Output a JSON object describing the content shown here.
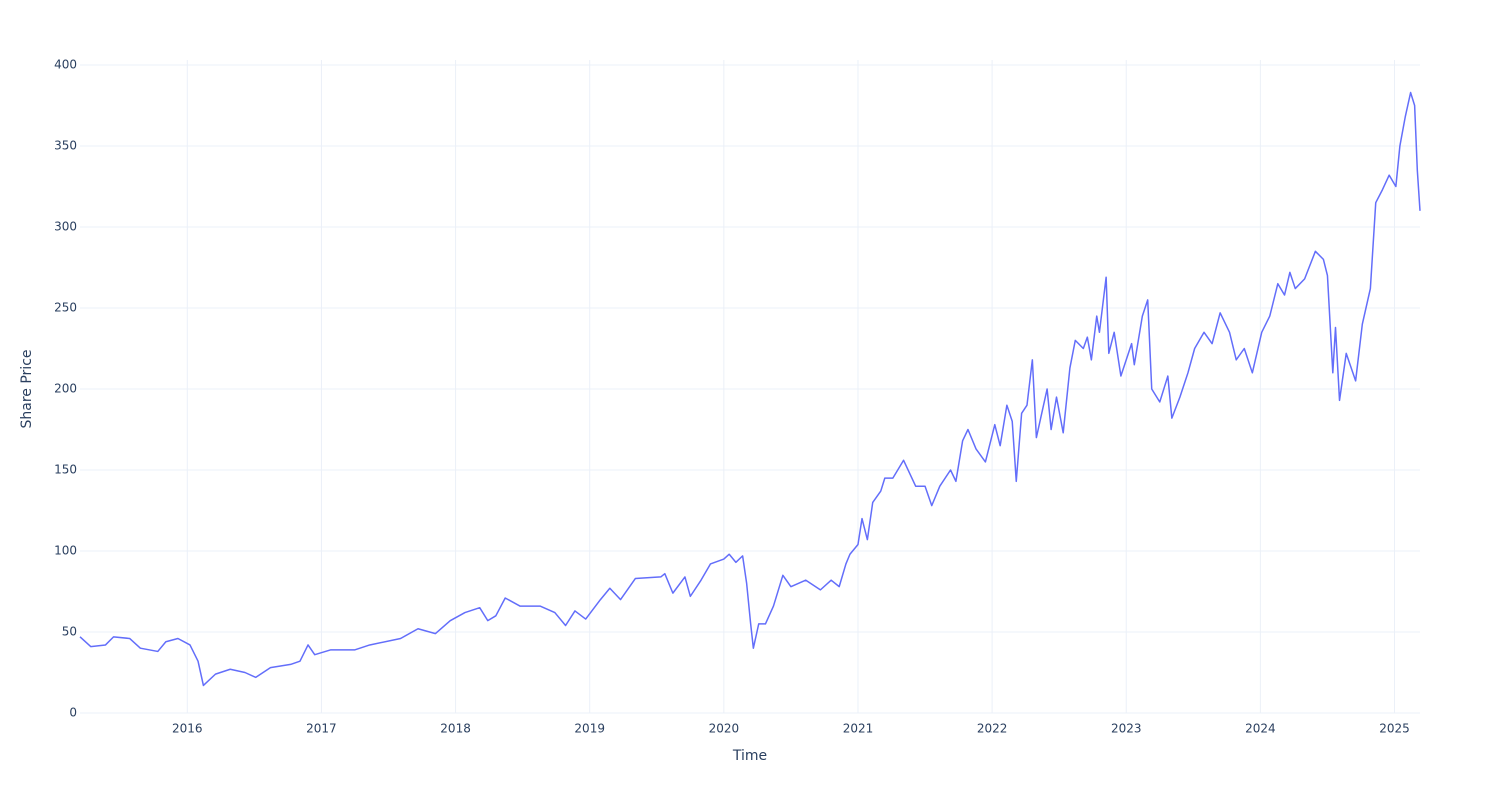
{
  "chart_data": {
    "type": "line",
    "x_label": "Time",
    "y_label": "Share Price",
    "color": "#636efa",
    "grid": true,
    "xlim": [
      2015.2,
      2025.19
    ],
    "ylim": [
      0,
      400
    ],
    "xticks": [
      2016,
      2017,
      2018,
      2019,
      2020,
      2021,
      2022,
      2023,
      2024,
      2025
    ],
    "yticks": [
      0,
      50,
      100,
      150,
      200,
      250,
      300,
      350,
      400
    ],
    "x": [
      2015.2,
      2015.28,
      2015.39,
      2015.45,
      2015.57,
      2015.65,
      2015.78,
      2015.84,
      2015.93,
      2016.02,
      2016.08,
      2016.12,
      2016.21,
      2016.32,
      2016.43,
      2016.51,
      2016.62,
      2016.77,
      2016.84,
      2016.9,
      2016.95,
      2017.07,
      2017.25,
      2017.36,
      2017.59,
      2017.72,
      2017.85,
      2017.96,
      2018.07,
      2018.18,
      2018.24,
      2018.3,
      2018.37,
      2018.48,
      2018.63,
      2018.74,
      2018.82,
      2018.89,
      2018.97,
      2019.08,
      2019.15,
      2019.23,
      2019.34,
      2019.53,
      2019.56,
      2019.62,
      2019.71,
      2019.75,
      2019.83,
      2019.9,
      2020.0,
      2020.04,
      2020.09,
      2020.14,
      2020.17,
      2020.2,
      2020.22,
      2020.26,
      2020.31,
      2020.37,
      2020.44,
      2020.5,
      2020.61,
      2020.72,
      2020.8,
      2020.86,
      2020.91,
      2020.94,
      2021.0,
      2021.03,
      2021.07,
      2021.11,
      2021.17,
      2021.2,
      2021.26,
      2021.34,
      2021.43,
      2021.5,
      2021.55,
      2021.61,
      2021.69,
      2021.73,
      2021.78,
      2021.82,
      2021.88,
      2021.95,
      2022.02,
      2022.06,
      2022.11,
      2022.15,
      2022.18,
      2022.22,
      2022.26,
      2022.3,
      2022.33,
      2022.37,
      2022.41,
      2022.44,
      2022.48,
      2022.53,
      2022.58,
      2022.62,
      2022.68,
      2022.71,
      2022.74,
      2022.78,
      2022.8,
      2022.85,
      2022.87,
      2022.91,
      2022.96,
      2023.04,
      2023.06,
      2023.12,
      2023.16,
      2023.19,
      2023.25,
      2023.31,
      2023.34,
      2023.4,
      2023.46,
      2023.51,
      2023.58,
      2023.64,
      2023.7,
      2023.77,
      2023.82,
      2023.88,
      2023.94,
      2024.01,
      2024.07,
      2024.13,
      2024.18,
      2024.22,
      2024.26,
      2024.33,
      2024.41,
      2024.47,
      2024.5,
      2024.54,
      2024.56,
      2024.59,
      2024.64,
      2024.71,
      2024.76,
      2024.82,
      2024.86,
      2024.91,
      2024.96,
      2025.01,
      2025.04,
      2025.08,
      2025.12,
      2025.15,
      2025.17,
      2025.19
    ],
    "values": [
      47,
      41,
      42,
      47,
      46,
      40,
      38,
      44,
      46,
      42,
      32,
      17,
      24,
      27,
      25,
      22,
      28,
      30,
      32,
      42,
      36,
      39,
      39,
      42,
      46,
      52,
      49,
      57,
      62,
      65,
      57,
      60,
      71,
      66,
      66,
      62,
      54,
      63,
      58,
      70,
      77,
      70,
      83,
      84,
      86,
      74,
      84,
      72,
      82,
      92,
      95,
      98,
      93,
      97,
      80,
      55,
      40,
      55,
      55,
      66,
      85,
      78,
      82,
      76,
      82,
      78,
      92,
      98,
      104,
      120,
      107,
      130,
      137,
      145,
      145,
      156,
      140,
      140,
      128,
      140,
      150,
      143,
      168,
      175,
      163,
      155,
      178,
      165,
      190,
      180,
      143,
      185,
      190,
      218,
      170,
      185,
      200,
      175,
      195,
      173,
      213,
      230,
      225,
      232,
      218,
      245,
      235,
      269,
      222,
      235,
      208,
      228,
      215,
      245,
      255,
      200,
      192,
      208,
      182,
      195,
      210,
      225,
      235,
      228,
      247,
      235,
      218,
      225,
      210,
      235,
      245,
      265,
      258,
      272,
      262,
      268,
      285,
      280,
      270,
      210,
      238,
      193,
      222,
      205,
      240,
      262,
      315,
      323,
      332,
      325,
      350,
      368,
      383,
      375,
      335,
      310
    ]
  }
}
